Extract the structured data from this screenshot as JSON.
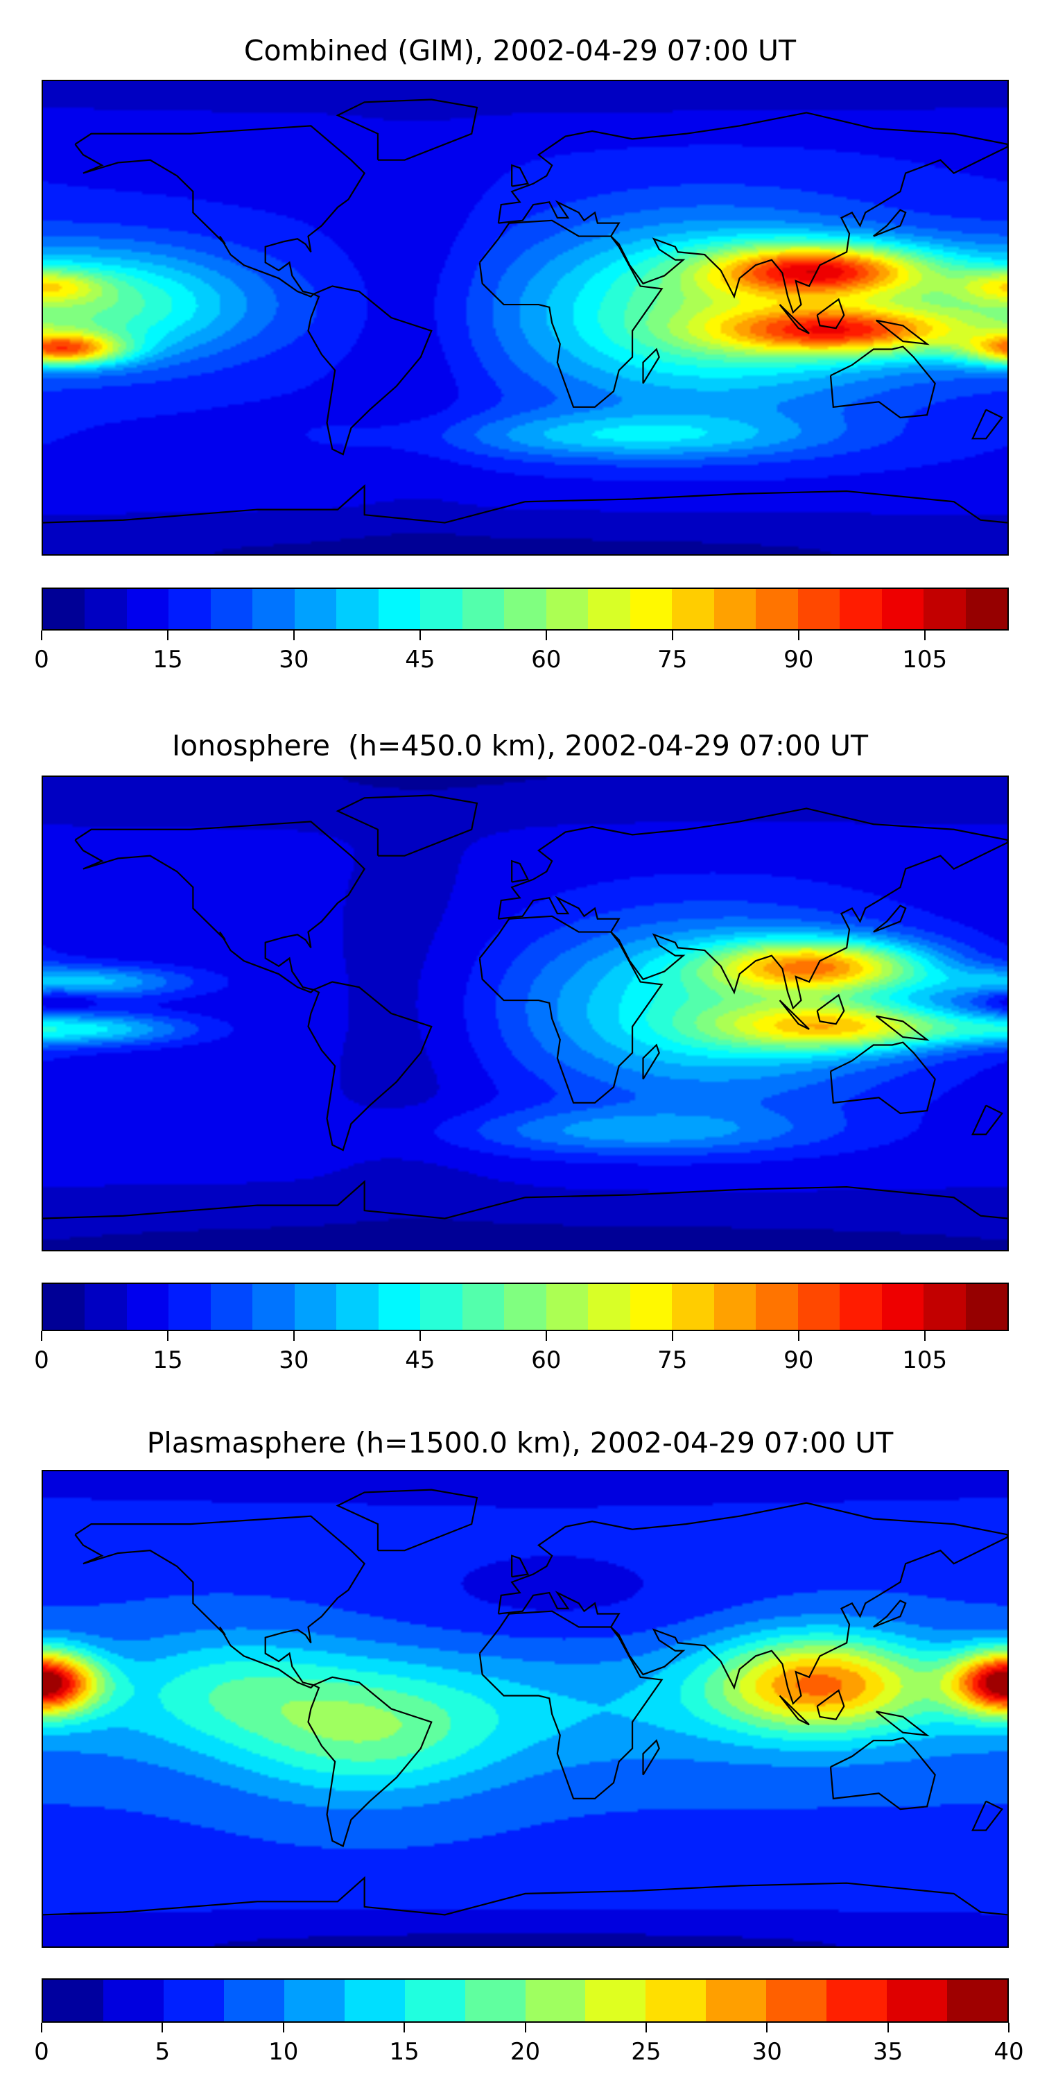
{
  "chart_data": [
    {
      "type": "heatmap",
      "title": "Combined (GIM), 2002-04-29 07:00 UT",
      "projection": "equirectangular world map",
      "colorbar": {
        "min": 0,
        "max": 115,
        "step": 5,
        "ticks": [
          0,
          15,
          30,
          45,
          60,
          75,
          90,
          105
        ],
        "tick_labels": [
          "0",
          "15",
          "30",
          "45",
          "60",
          "75",
          "90",
          "105"
        ],
        "colormap": "jet"
      },
      "features": [
        "maximum ~105-115 over South/Southeast Asia (lat ~20N and ~5S)",
        "secondary maximum ~85 at date line near 12S",
        "minimum ~10-20 over Atlantic and polar regions"
      ]
    },
    {
      "type": "heatmap",
      "title": "Ionosphere  (h=450.0 km), 2002-04-29 07:00 UT",
      "projection": "equirectangular world map",
      "colorbar": {
        "min": 0,
        "max": 115,
        "step": 5,
        "ticks": [
          0,
          15,
          30,
          45,
          60,
          75,
          90,
          105
        ],
        "tick_labels": [
          "0",
          "15",
          "30",
          "45",
          "60",
          "75",
          "90",
          "105"
        ],
        "colormap": "jet"
      },
      "features": [
        "maximum ~80-90 over Southeast Asia",
        "minimum ~5-15 over Americas/Atlantic and poles"
      ]
    },
    {
      "type": "heatmap",
      "title": "Plasmasphere (h=1500.0 km), 2002-04-29 07:00 UT",
      "projection": "equirectangular world map",
      "colorbar": {
        "min": 0,
        "max": 40,
        "step": 2.5,
        "ticks": [
          0,
          5,
          10,
          15,
          20,
          25,
          30,
          35,
          40
        ],
        "tick_labels": [
          "0",
          "5",
          "10",
          "15",
          "20",
          "25",
          "30",
          "35",
          "40"
        ],
        "colormap": "jet"
      },
      "features": [
        "maximum ~37 at date line near 10N",
        "secondary maximum ~27 over Southeast Asia",
        "minimum ~2-5 at poles"
      ]
    }
  ]
}
